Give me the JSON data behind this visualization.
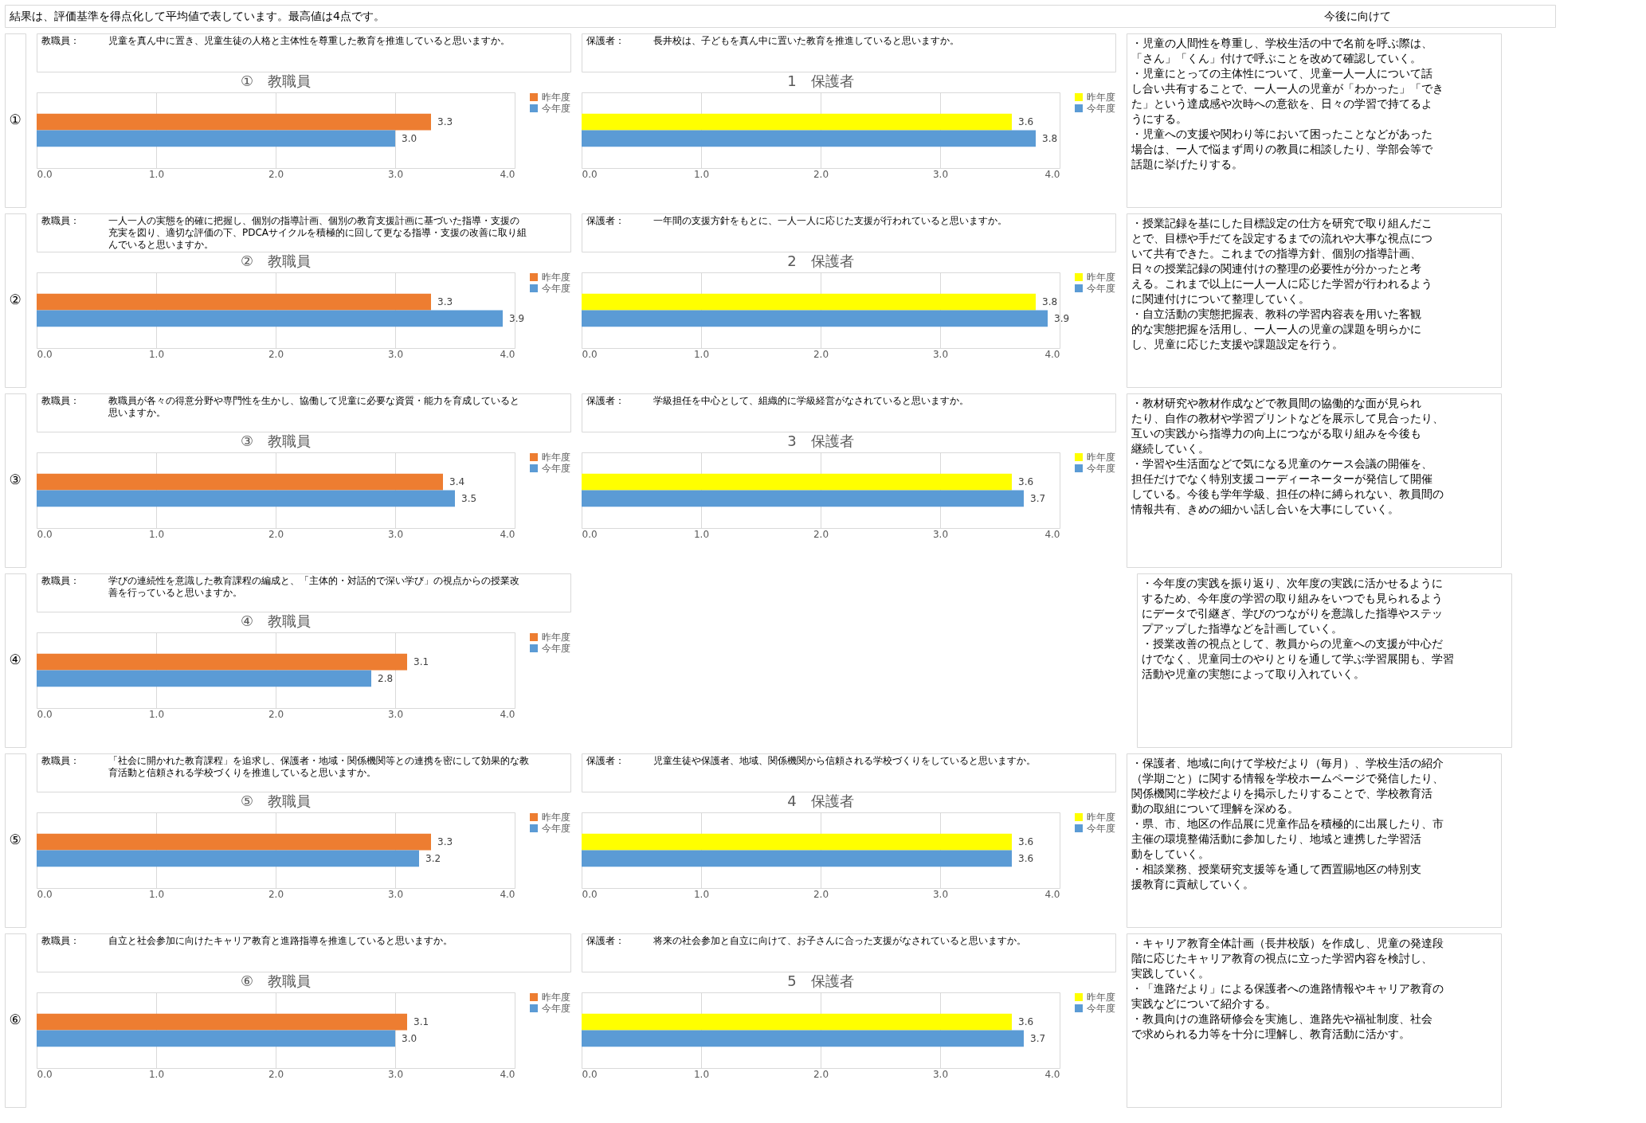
{
  "chart_data": [
    {
      "type": "other",
      "annotations": [
        "結果は、評価基準を得点化して平均値で表しています。最高値は4点です。",
        "今後に向けて"
      ]
    },
    {
      "type": "other",
      "annotations": [
        "①"
      ]
    },
    {
      "type": "bar",
      "orientation": "horizontal",
      "title": "①　教職員",
      "annotations": [
        "教職員：",
        "児童を真ん中に置き、児童生徒の人格と主体性を尊重した教育を推進していると思いますか。"
      ],
      "categories": [
        null
      ],
      "series": [
        {
          "name": "昨年度",
          "color": "#ed7d31",
          "values": [
            3.3
          ]
        },
        {
          "name": "今年度",
          "color": "#5b9bd5",
          "values": [
            3.0
          ],
          "value_labels": [
            "3.0"
          ]
        }
      ],
      "xlim": [
        0,
        4
      ],
      "xticks": [
        {
          "value": 0,
          "label": "0.0"
        },
        {
          "value": 1,
          "label": "1.0"
        },
        {
          "value": 2,
          "label": "2.0"
        },
        {
          "value": 3,
          "label": "3.0"
        },
        {
          "value": 4,
          "label": "4.0"
        }
      ],
      "grid": "x",
      "legend": "right",
      "data_labels": true,
      "tick_labels": "x"
    },
    {
      "type": "bar",
      "orientation": "horizontal",
      "title": "1　保護者",
      "annotations": [
        "保護者：",
        "長井校は、子どもを真ん中に置いた教育を推進していると思いますか。"
      ],
      "categories": [
        null
      ],
      "series": [
        {
          "name": "昨年度",
          "color": "#ffff00",
          "values": [
            3.6
          ]
        },
        {
          "name": "今年度",
          "color": "#5b9bd5",
          "values": [
            3.8
          ]
        }
      ],
      "xlim": [
        0,
        4
      ],
      "xticks": [
        {
          "value": 0,
          "label": "0.0"
        },
        {
          "value": 1,
          "label": "1.0"
        },
        {
          "value": 2,
          "label": "2.0"
        },
        {
          "value": 3,
          "label": "3.0"
        },
        {
          "value": 4,
          "label": "4.0"
        }
      ],
      "grid": "x",
      "legend": "right",
      "data_labels": true,
      "tick_labels": "x"
    },
    {
      "type": "other",
      "annotations": [
        "・児童の人間性を尊重し、学校生活の中で名前を呼ぶ際は、",
        "「さん」「くん」付けで呼ぶことを改めて確認していく。",
        "・児童にとっての主体性について、児童一人一人について話",
        "し合い共有することで、一人一人の児童が「わかった」「でき",
        "た」という達成感や次時への意欲を、日々の学習で持てるよ",
        "うにする。",
        "・児童への支援や関わり等において困ったことなどがあった",
        "場合は、一人で悩まず周りの教員に相談したり、学部会等で",
        "話題に挙げたりする。"
      ]
    },
    {
      "type": "other",
      "annotations": [
        "②"
      ]
    },
    {
      "type": "bar",
      "orientation": "horizontal",
      "title": "②　教職員",
      "annotations": [
        "教職員：",
        "一人一人の実態を的確に把握し、個別の指導計画、個別の教育支援計画に基づいた指導・支援の",
        "充実を図り、適切な評価の下、PDCAサイクルを積極的に回して更なる指導・支援の改善に取り組",
        "んでいると思いますか。"
      ],
      "categories": [
        null
      ],
      "series": [
        {
          "name": "昨年度",
          "color": "#ed7d31",
          "values": [
            3.3
          ]
        },
        {
          "name": "今年度",
          "color": "#5b9bd5",
          "values": [
            3.9
          ]
        }
      ],
      "xlim": [
        0,
        4
      ],
      "xticks": [
        {
          "value": 0,
          "label": "0.0"
        },
        {
          "value": 1,
          "label": "1.0"
        },
        {
          "value": 2,
          "label": "2.0"
        },
        {
          "value": 3,
          "label": "3.0"
        },
        {
          "value": 4,
          "label": "4.0"
        }
      ],
      "grid": "x",
      "legend": "right",
      "data_labels": true,
      "tick_labels": "x"
    },
    {
      "type": "bar",
      "orientation": "horizontal",
      "title": "2　保護者",
      "annotations": [
        "保護者：",
        "一年間の支援方針をもとに、一人一人に応じた支援が行われていると思いますか。"
      ],
      "categories": [
        null
      ],
      "series": [
        {
          "name": "昨年度",
          "color": "#ffff00",
          "values": [
            3.8
          ]
        },
        {
          "name": "今年度",
          "color": "#5b9bd5",
          "values": [
            3.9
          ]
        }
      ],
      "xlim": [
        0,
        4
      ],
      "xticks": [
        {
          "value": 0,
          "label": "0.0"
        },
        {
          "value": 1,
          "label": "1.0"
        },
        {
          "value": 2,
          "label": "2.0"
        },
        {
          "value": 3,
          "label": "3.0"
        },
        {
          "value": 4,
          "label": "4.0"
        }
      ],
      "grid": "x",
      "legend": "right",
      "data_labels": true,
      "tick_labels": "x"
    },
    {
      "type": "other",
      "annotations": [
        "・授業記録を基にした目標設定の仕方を研究で取り組んだこ",
        "とで、目標や手だてを設定するまでの流れや大事な視点につ",
        "いて共有できた。これまでの指導方針、個別の指導計画、",
        "日々の授業記録の関連付けの整理の必要性が分かったと考",
        "える。これまで以上に一人一人に応じた学習が行われるよう",
        "に関連付けについて整理していく。",
        "・自立活動の実態把握表、教科の学習内容表を用いた客観",
        "的な実態把握を活用し、一人一人の児童の課題を明らかに",
        "し、児童に応じた支援や課題設定を行う。"
      ]
    },
    {
      "type": "other",
      "annotations": [
        "③"
      ]
    },
    {
      "type": "bar",
      "orientation": "horizontal",
      "title": "③　教職員",
      "annotations": [
        "教職員：",
        "教職員が各々の得意分野や専門性を生かし、協働して児童に必要な資質・能力を育成していると",
        "思いますか。"
      ],
      "categories": [
        null
      ],
      "series": [
        {
          "name": "昨年度",
          "color": "#ed7d31",
          "values": [
            3.4
          ]
        },
        {
          "name": "今年度",
          "color": "#5b9bd5",
          "values": [
            3.5
          ]
        }
      ],
      "xlim": [
        0,
        4
      ],
      "xticks": [
        {
          "value": 0,
          "label": "0.0"
        },
        {
          "value": 1,
          "label": "1.0"
        },
        {
          "value": 2,
          "label": "2.0"
        },
        {
          "value": 3,
          "label": "3.0"
        },
        {
          "value": 4,
          "label": "4.0"
        }
      ],
      "grid": "x",
      "legend": "right",
      "data_labels": true,
      "tick_labels": "x"
    },
    {
      "type": "bar",
      "orientation": "horizontal",
      "title": "3　保護者",
      "annotations": [
        "保護者：",
        "学級担任を中心として、組織的に学級経営がなされていると思いますか。"
      ],
      "categories": [
        null
      ],
      "series": [
        {
          "name": "昨年度",
          "color": "#ffff00",
          "values": [
            3.6
          ]
        },
        {
          "name": "今年度",
          "color": "#5b9bd5",
          "values": [
            3.7
          ]
        }
      ],
      "xlim": [
        0,
        4
      ],
      "xticks": [
        {
          "value": 0,
          "label": "0.0"
        },
        {
          "value": 1,
          "label": "1.0"
        },
        {
          "value": 2,
          "label": "2.0"
        },
        {
          "value": 3,
          "label": "3.0"
        },
        {
          "value": 4,
          "label": "4.0"
        }
      ],
      "grid": "x",
      "legend": "right",
      "data_labels": true,
      "tick_labels": "x"
    },
    {
      "type": "other",
      "annotations": [
        "・教材研究や教材作成などで教員間の協働的な面が見られ",
        "たり、自作の教材や学習プリントなどを展示して見合ったり、",
        "互いの実践から指導力の向上につながる取り組みを今後も",
        "継続していく。",
        "・学習や生活面などで気になる児童のケース会議の開催を、",
        "担任だけでなく特別支援コーディーネーターが発信して開催",
        "している。今後も学年学級、担任の枠に縛られない、教員間の",
        "情報共有、きめの細かい話し合いを大事にしていく。"
      ]
    },
    {
      "type": "other",
      "annotations": [
        "④"
      ]
    },
    {
      "type": "bar",
      "orientation": "horizontal",
      "title": "④　教職員",
      "annotations": [
        "教職員：",
        "学びの連続性を意識した教育課程の編成と、「主体的・対話的で深い学び」の視点からの授業改",
        "善を行っていると思いますか。"
      ],
      "categories": [
        null
      ],
      "series": [
        {
          "name": "昨年度",
          "color": "#ed7d31",
          "values": [
            3.1
          ]
        },
        {
          "name": "今年度",
          "color": "#5b9bd5",
          "values": [
            2.8
          ]
        }
      ],
      "xlim": [
        0,
        4
      ],
      "xticks": [
        {
          "value": 0,
          "label": "0.0"
        },
        {
          "value": 1,
          "label": "1.0"
        },
        {
          "value": 2,
          "label": "2.0"
        },
        {
          "value": 3,
          "label": "3.0"
        },
        {
          "value": 4,
          "label": "4.0"
        }
      ],
      "grid": "x",
      "legend": "right",
      "data_labels": true,
      "tick_labels": "x"
    },
    {
      "type": "other",
      "annotations": [
        "・今年度の実践を振り返り、次年度の実践に活かせるように",
        "するため、今年度の学習の取り組みをいつでも見られるよう",
        "にデータで引継ぎ、学びのつながりを意識した指導やステッ",
        "プアップした指導などを計画していく。",
        "・授業改善の視点として、教員からの児童への支援が中心だ",
        "けでなく、児童同士のやりとりを通して学ぶ学習展開も、学習",
        "活動や児童の実態によって取り入れていく。"
      ]
    },
    {
      "type": "other",
      "annotations": [
        "⑤"
      ]
    },
    {
      "type": "bar",
      "orientation": "horizontal",
      "title": "⑤　教職員",
      "annotations": [
        "教職員：",
        "「社会に開かれた教育課程」を追求し、保護者・地域・関係機関等との連携を密にして効果的な教",
        "育活動と信頼される学校づくりを推進していると思いますか。"
      ],
      "categories": [
        null
      ],
      "series": [
        {
          "name": "昨年度",
          "color": "#ed7d31",
          "values": [
            3.3
          ]
        },
        {
          "name": "今年度",
          "color": "#5b9bd5",
          "values": [
            3.2
          ]
        }
      ],
      "xlim": [
        0,
        4
      ],
      "xticks": [
        {
          "value": 0,
          "label": "0.0"
        },
        {
          "value": 1,
          "label": "1.0"
        },
        {
          "value": 2,
          "label": "2.0"
        },
        {
          "value": 3,
          "label": "3.0"
        },
        {
          "value": 4,
          "label": "4.0"
        }
      ],
      "grid": "x",
      "legend": "right",
      "data_labels": true,
      "tick_labels": "x"
    },
    {
      "type": "bar",
      "orientation": "horizontal",
      "title": "4　保護者",
      "annotations": [
        "保護者：",
        "児童生徒や保護者、地域、関係機関から信頼される学校づくりをしていると思いますか。"
      ],
      "categories": [
        null
      ],
      "series": [
        {
          "name": "昨年度",
          "color": "#ffff00",
          "values": [
            3.6
          ]
        },
        {
          "name": "今年度",
          "color": "#5b9bd5",
          "values": [
            3.6
          ]
        }
      ],
      "xlim": [
        0,
        4
      ],
      "xticks": [
        {
          "value": 0,
          "label": "0.0"
        },
        {
          "value": 1,
          "label": "1.0"
        },
        {
          "value": 2,
          "label": "2.0"
        },
        {
          "value": 3,
          "label": "3.0"
        },
        {
          "value": 4,
          "label": "4.0"
        }
      ],
      "grid": "x",
      "legend": "right",
      "data_labels": true,
      "tick_labels": "x"
    },
    {
      "type": "other",
      "annotations": [
        "・保護者、地域に向けて学校だより（毎月）、学校生活の紹介",
        "（学期ごと）に関する情報を学校ホームページで発信したり、",
        "関係機関に学校だよりを掲示したりすることで、学校教育活",
        "動の取組について理解を深める。",
        "・県、市、地区の作品展に児童作品を積極的に出展したり、市",
        "主催の環境整備活動に参加したり、地域と連携した学習活",
        "動をしていく。",
        "・相談業務、授業研究支援等を通して西置賜地区の特別支",
        "援教育に貢献していく。"
      ]
    },
    {
      "type": "other",
      "annotations": [
        "⑥"
      ]
    },
    {
      "type": "bar",
      "orientation": "horizontal",
      "title": "⑥　教職員",
      "annotations": [
        "教職員：",
        "自立と社会参加に向けたキャリア教育と進路指導を推進していると思いますか。"
      ],
      "categories": [
        null
      ],
      "series": [
        {
          "name": "昨年度",
          "color": "#ed7d31",
          "values": [
            3.1
          ]
        },
        {
          "name": "今年度",
          "color": "#5b9bd5",
          "values": [
            3.0
          ],
          "value_labels": [
            "3.0"
          ]
        }
      ],
      "xlim": [
        0,
        4
      ],
      "xticks": [
        {
          "value": 0,
          "label": "0.0"
        },
        {
          "value": 1,
          "label": "1.0"
        },
        {
          "value": 2,
          "label": "2.0"
        },
        {
          "value": 3,
          "label": "3.0"
        },
        {
          "value": 4,
          "label": "4.0"
        }
      ],
      "grid": "x",
      "legend": "right",
      "data_labels": true,
      "tick_labels": "x"
    },
    {
      "type": "bar",
      "orientation": "horizontal",
      "title": "5　保護者",
      "annotations": [
        "保護者：",
        "将来の社会参加と自立に向けて、お子さんに合った支援がなされていると思いますか。"
      ],
      "categories": [
        null
      ],
      "series": [
        {
          "name": "昨年度",
          "color": "#ffff00",
          "values": [
            3.6
          ]
        },
        {
          "name": "今年度",
          "color": "#5b9bd5",
          "values": [
            3.7
          ]
        }
      ],
      "xlim": [
        0,
        4
      ],
      "xticks": [
        {
          "value": 0,
          "label": "0.0"
        },
        {
          "value": 1,
          "label": "1.0"
        },
        {
          "value": 2,
          "label": "2.0"
        },
        {
          "value": 3,
          "label": "3.0"
        },
        {
          "value": 4,
          "label": "4.0"
        }
      ],
      "grid": "x",
      "legend": "right",
      "data_labels": true,
      "tick_labels": "x"
    },
    {
      "type": "other",
      "annotations": [
        "・キャリア教育全体計画（長井校版）を作成し、児童の発達段",
        "階に応じたキャリア教育の視点に立った学習内容を検討し、",
        "実践していく。",
        "・「進路だより」による保護者への進路情報やキャリア教育の",
        "実践などについて紹介する。",
        "・教員向けの進路研修会を実施し、進路先や福祉制度、社会",
        "で求められる力等を十分に理解し、教育活動に活かす。"
      ]
    }
  ]
}
